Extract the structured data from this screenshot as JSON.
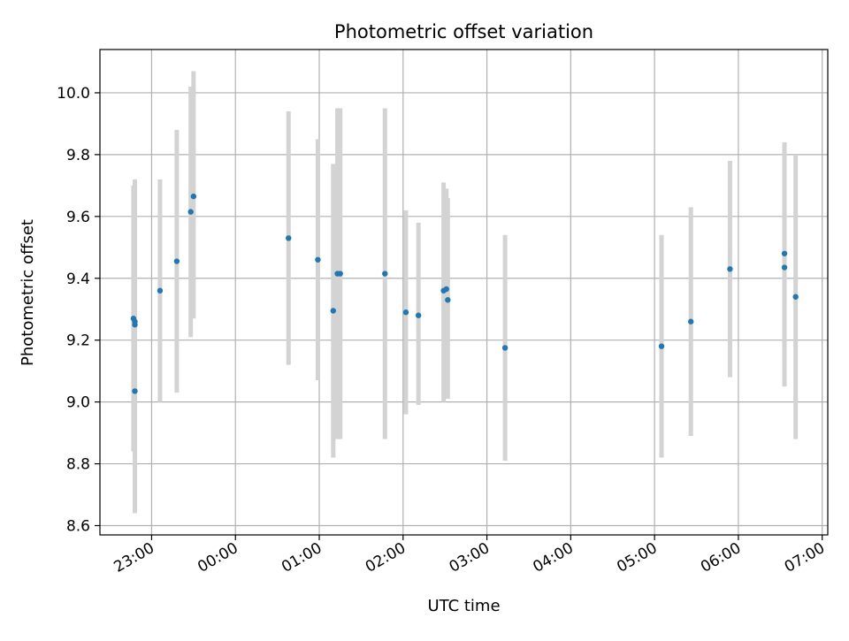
{
  "chart_data": {
    "type": "scatter",
    "title": "Photometric offset variation",
    "xlabel": "UTC time",
    "ylabel": "Photometric offset",
    "x_axis": "time",
    "xlim": [
      "22:23",
      "07:04"
    ],
    "ylim": [
      8.57,
      10.14
    ],
    "x_ticks": [
      "23:00",
      "00:00",
      "01:00",
      "02:00",
      "03:00",
      "04:00",
      "05:00",
      "06:00",
      "07:00"
    ],
    "y_ticks": [
      "8.6",
      "8.8",
      "9.0",
      "9.2",
      "9.4",
      "9.6",
      "9.8",
      "10.0"
    ],
    "grid": true,
    "colors": {
      "points": "#1f77b4",
      "errorbars": "#d3d3d3",
      "grid": "#b0b0b0"
    },
    "series": [
      {
        "points": [
          {
            "t": "22:47",
            "y": 9.27,
            "lo": 8.84,
            "hi": 9.7
          },
          {
            "t": "22:48",
            "y": 9.26,
            "lo": 8.64,
            "hi": 9.72
          },
          {
            "t": "22:48",
            "y": 9.25,
            "lo": 8.8,
            "hi": 9.7
          },
          {
            "t": "22:48",
            "y": 9.035,
            "lo": 8.7,
            "hi": 9.45
          },
          {
            "t": "23:06",
            "y": 9.36,
            "lo": 9.0,
            "hi": 9.72
          },
          {
            "t": "23:18",
            "y": 9.455,
            "lo": 9.03,
            "hi": 9.88
          },
          {
            "t": "23:28",
            "y": 9.615,
            "lo": 9.21,
            "hi": 10.02
          },
          {
            "t": "23:30",
            "y": 9.665,
            "lo": 9.27,
            "hi": 10.07
          },
          {
            "t": "00:38",
            "y": 9.53,
            "lo": 9.12,
            "hi": 9.94
          },
          {
            "t": "00:59",
            "y": 9.46,
            "lo": 9.07,
            "hi": 9.85
          },
          {
            "t": "01:10",
            "y": 9.295,
            "lo": 8.82,
            "hi": 9.77
          },
          {
            "t": "01:13",
            "y": 9.415,
            "lo": 8.88,
            "hi": 9.95
          },
          {
            "t": "01:15",
            "y": 9.415,
            "lo": 8.88,
            "hi": 9.95
          },
          {
            "t": "01:47",
            "y": 9.415,
            "lo": 8.88,
            "hi": 9.95
          },
          {
            "t": "02:02",
            "y": 9.29,
            "lo": 8.96,
            "hi": 9.62
          },
          {
            "t": "02:11",
            "y": 9.28,
            "lo": 8.99,
            "hi": 9.58
          },
          {
            "t": "02:29",
            "y": 9.36,
            "lo": 9.0,
            "hi": 9.71
          },
          {
            "t": "02:31",
            "y": 9.365,
            "lo": 9.04,
            "hi": 9.69
          },
          {
            "t": "02:32",
            "y": 9.33,
            "lo": 9.01,
            "hi": 9.66
          },
          {
            "t": "03:13",
            "y": 9.175,
            "lo": 8.81,
            "hi": 9.54
          },
          {
            "t": "05:05",
            "y": 9.18,
            "lo": 8.82,
            "hi": 9.54
          },
          {
            "t": "05:26",
            "y": 9.26,
            "lo": 8.89,
            "hi": 9.63
          },
          {
            "t": "05:54",
            "y": 9.43,
            "lo": 9.08,
            "hi": 9.78
          },
          {
            "t": "06:33",
            "y": 9.48,
            "lo": 9.12,
            "hi": 9.84
          },
          {
            "t": "06:33",
            "y": 9.435,
            "lo": 9.05,
            "hi": 9.82
          },
          {
            "t": "06:41",
            "y": 9.34,
            "lo": 8.88,
            "hi": 9.8
          }
        ]
      }
    ]
  }
}
